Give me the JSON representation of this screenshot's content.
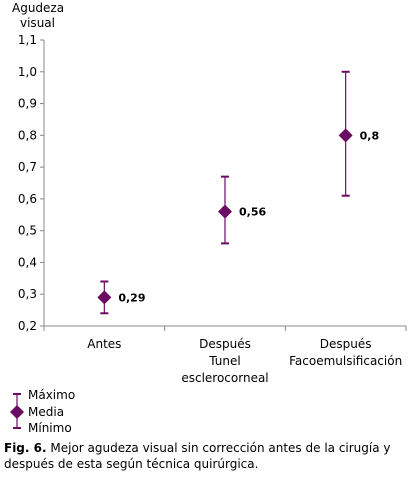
{
  "chart_data": {
    "type": "scatter",
    "ylabel": "Agudeza visual",
    "categories": [
      [
        "Antes"
      ],
      [
        "Después",
        "Tunel",
        "esclerocorneal"
      ],
      [
        "Después",
        "Facoemulsificación"
      ]
    ],
    "ylim": [
      0.2,
      1.1
    ],
    "yticks": [
      "0,2",
      "0,3",
      "0,4",
      "0,5",
      "0,6",
      "0,7",
      "0,8",
      "0,9",
      "1,0",
      "1,1"
    ],
    "points": [
      {
        "mean": 0.29,
        "max": 0.34,
        "min": 0.24,
        "label": "0,29"
      },
      {
        "mean": 0.56,
        "max": 0.67,
        "min": 0.46,
        "label": "0,56"
      },
      {
        "mean": 0.8,
        "max": 1.0,
        "min": 0.61,
        "label": "0,8"
      }
    ],
    "legend": [
      "Máximo",
      "Media",
      "Mínimo"
    ],
    "legend_position": "bottom-left",
    "grid": false,
    "colors": {
      "marker": "#6a0c63",
      "errorbar": "#6a0c63",
      "axis": "#888888"
    }
  },
  "caption": {
    "label": "Fig. 6.",
    "text": "Mejor agudeza visual sin corrección antes de la cirugía y después de esta según técnica quirúrgica."
  }
}
